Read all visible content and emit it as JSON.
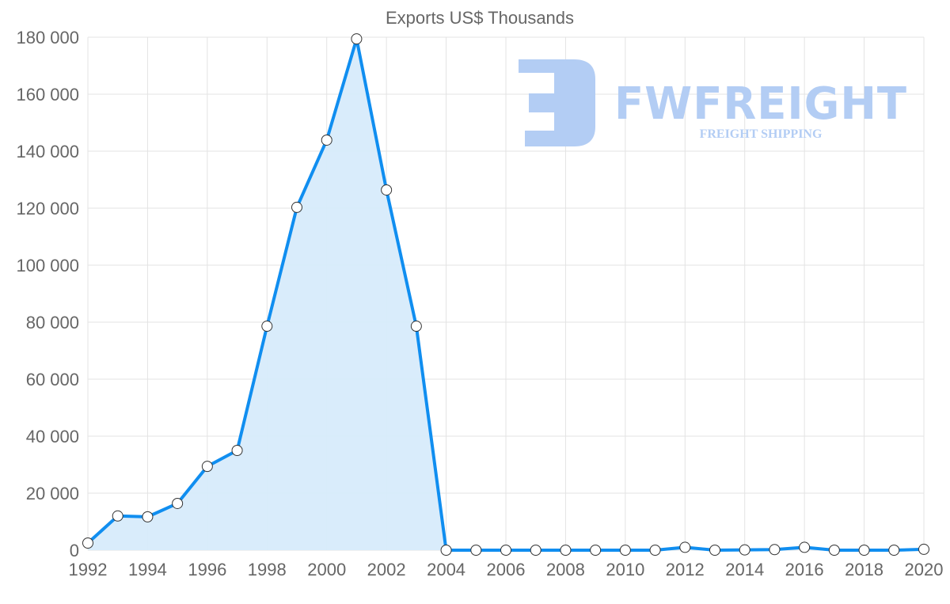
{
  "chart_data": {
    "type": "area",
    "title": "Exports US$ Thousands",
    "xlabel": "",
    "ylabel": "",
    "x": [
      1992,
      1993,
      1994,
      1995,
      1996,
      1997,
      1998,
      1999,
      2000,
      2001,
      2002,
      2003,
      2004,
      2005,
      2006,
      2007,
      2008,
      2009,
      2010,
      2011,
      2012,
      2013,
      2014,
      2015,
      2016,
      2017,
      2018,
      2019,
      2020
    ],
    "series": [
      {
        "name": "Exports US$ Thousands",
        "values": [
          2500,
          12000,
          11700,
          16400,
          29400,
          35000,
          78600,
          120300,
          143900,
          179400,
          126400,
          78600,
          0,
          0,
          0,
          0,
          0,
          0,
          0,
          0,
          1000,
          0,
          100,
          200,
          1000,
          0,
          0,
          0,
          300
        ],
        "color": "#108ef0",
        "fill": "#d7ebfb"
      }
    ],
    "xlim": [
      1992,
      2020
    ],
    "ylim": [
      0,
      180000
    ],
    "x_ticks": [
      "1992",
      "1994",
      "1996",
      "1998",
      "2000",
      "2002",
      "2004",
      "2006",
      "2008",
      "2010",
      "2012",
      "2014",
      "2016",
      "2018",
      "2020"
    ],
    "y_ticks": [
      "0",
      "20 000",
      "40 000",
      "60 000",
      "80 000",
      "100 000",
      "120 000",
      "140 000",
      "160 000",
      "180 000"
    ],
    "grid": true,
    "legend": "none"
  },
  "watermark": {
    "brand": "FWFREIGHT",
    "tagline": "FREIGHT SHIPPING"
  }
}
